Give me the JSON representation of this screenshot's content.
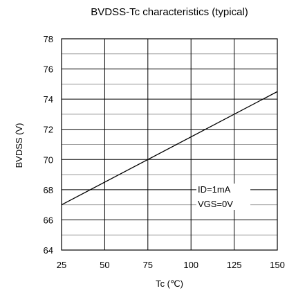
{
  "chart_data": {
    "type": "line",
    "title": "BVDSS-Tc characteristics (typical)",
    "xlabel": "Tc (℃)",
    "ylabel": "BVDSS (V)",
    "xlim": [
      25,
      150
    ],
    "ylim": [
      64,
      78
    ],
    "x_ticks": [
      25,
      50,
      75,
      100,
      125,
      150
    ],
    "y_ticks": [
      64,
      66,
      68,
      70,
      72,
      74,
      76,
      78
    ],
    "grid": true,
    "series": [
      {
        "x": [
          25,
          150
        ],
        "y": [
          67.0,
          74.5
        ]
      }
    ],
    "annotations": [
      "ID=1mA",
      "VGS=0V"
    ]
  }
}
